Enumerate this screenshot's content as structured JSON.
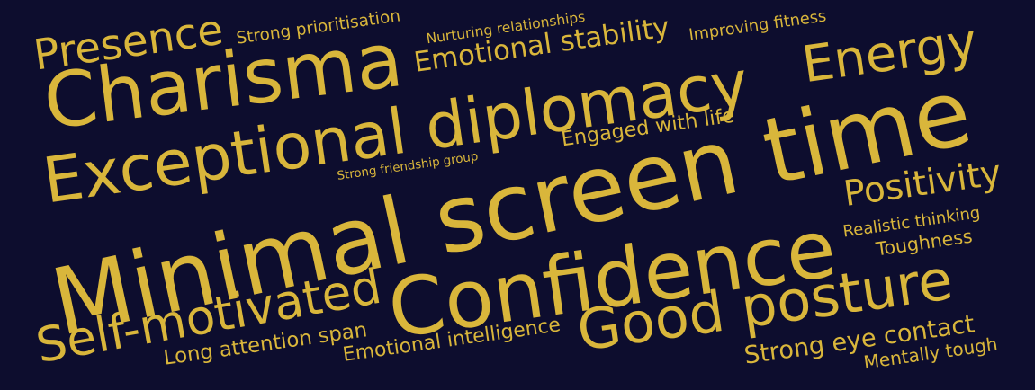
{
  "word_cloud": {
    "text_color": "#d9b63b",
    "background_color": "#0d0d2e",
    "words": [
      {
        "text": "Minimal screen time",
        "weight": 10
      },
      {
        "text": "Confidence",
        "weight": 9
      },
      {
        "text": "Charisma",
        "weight": 8
      },
      {
        "text": "Exceptional diplomacy",
        "weight": 7
      },
      {
        "text": "Energy",
        "weight": 6
      },
      {
        "text": "Good posture",
        "weight": 6
      },
      {
        "text": "Self-motivated",
        "weight": 5
      },
      {
        "text": "Presence",
        "weight": 4
      },
      {
        "text": "Emotional stability",
        "weight": 3
      },
      {
        "text": "Positivity",
        "weight": 3
      },
      {
        "text": "Strong eye contact",
        "weight": 2
      },
      {
        "text": "Emotional intelligence",
        "weight": 2
      },
      {
        "text": "Long attention span",
        "weight": 2
      },
      {
        "text": "Engaged with life",
        "weight": 2
      },
      {
        "text": "Realistic thinking",
        "weight": 2
      },
      {
        "text": "Toughness",
        "weight": 1
      },
      {
        "text": "Mentally tough",
        "weight": 1
      },
      {
        "text": "Strong prioritisation",
        "weight": 1
      },
      {
        "text": "Improving fitness",
        "weight": 1
      },
      {
        "text": "Nurturing relationships",
        "weight": 1
      },
      {
        "text": "Strong friendship group",
        "weight": 1
      }
    ]
  }
}
